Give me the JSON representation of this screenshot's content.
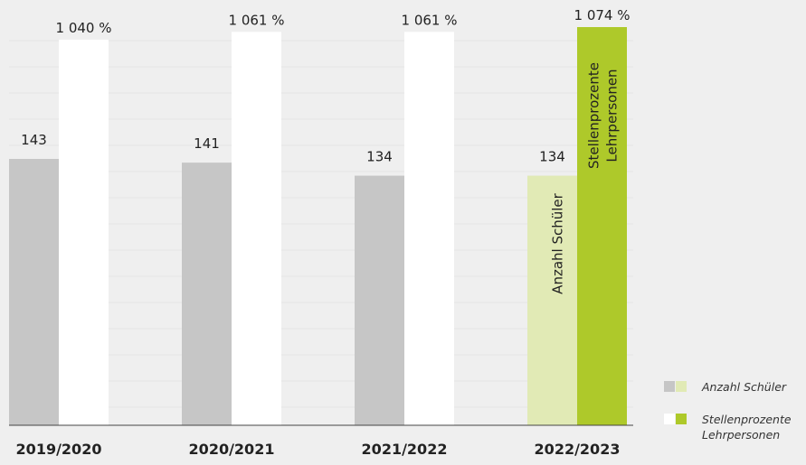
{
  "chart_data": {
    "type": "bar",
    "categories": [
      "2019/2020",
      "2020/2021",
      "2021/2022",
      "2022/2023"
    ],
    "series": [
      {
        "name": "Anzahl Schüler",
        "values": [
          143,
          141,
          134,
          134
        ],
        "labels": [
          "143",
          "141",
          "134",
          "134"
        ],
        "color": "#c6c6c6",
        "highlight_color": "#e1eab5"
      },
      {
        "name": "Stellenprozente Lehrpersonen",
        "values": [
          1040,
          1061,
          1061,
          1074
        ],
        "labels": [
          "1 040 %",
          "1 061 %",
          "1 061 %",
          "1 074 %"
        ],
        "color": "#ffffff",
        "highlight_color": "#aec92a"
      }
    ],
    "highlight_index": 3,
    "bar_inner_labels": [
      "Anzahl Schüler",
      "Stellenprozente",
      "Lehrpersonen"
    ],
    "grid": true
  },
  "legend": {
    "items": [
      {
        "label": "Anzahl Schüler",
        "swatches": [
          "#c6c6c6",
          "#e1eab5"
        ]
      },
      {
        "label_line1": "Stellenprozente",
        "label_line2": "Lehrpersonen",
        "swatches": [
          "#ffffff",
          "#aec92a"
        ]
      }
    ]
  }
}
